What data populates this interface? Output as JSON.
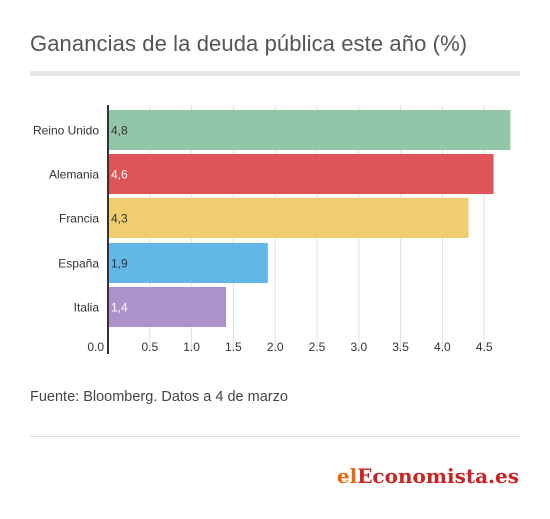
{
  "title": "Ganancias de la deuda pública este año (%)",
  "source": "Fuente: Bloomberg. Datos a 4 de marzo",
  "logo": {
    "part1": "el",
    "part2": "Economista.es"
  },
  "colors": {
    "Reino Unido": "#93c6a8",
    "Alemania": "#de5457",
    "Francia": "#f0cd6e",
    "España": "#62b7e6",
    "Italia": "#ad92c9",
    "grid": "#e0e0e0",
    "axis": "#333333"
  },
  "chart_data": {
    "type": "bar",
    "orientation": "horizontal",
    "title": "Ganancias de la deuda pública este año (%)",
    "categories": [
      "Reino Unido",
      "Alemania",
      "Francia",
      "España",
      "Italia"
    ],
    "values": [
      4.8,
      4.6,
      4.3,
      1.9,
      1.4
    ],
    "data_labels": [
      "4,8",
      "4,6",
      "4,3",
      "1,9",
      "1,4"
    ],
    "x_ticks": [
      "0.0",
      "0.5",
      "1.0",
      "1.5",
      "2.0",
      "2.5",
      "3.0",
      "3.5",
      "4.0",
      "4.5"
    ],
    "xlim": [
      0,
      5
    ],
    "grid": true,
    "legend": "none"
  }
}
